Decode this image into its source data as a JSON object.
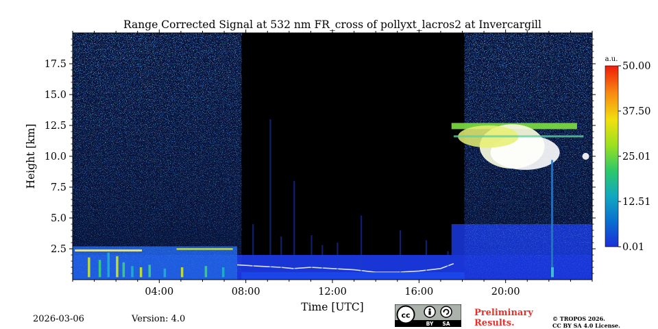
{
  "chart_data": {
    "type": "heatmap",
    "title": "Range Corrected Signal at 532 nm FR_cross of pollyxt_lacros2 at Invercargill",
    "xlabel": "Time [UTC]",
    "ylabel": "Height [km]",
    "xlim_hours": [
      0,
      24
    ],
    "ylim_km": [
      0,
      20
    ],
    "x_ticks": [
      {
        "value": 4,
        "label": "04:00"
      },
      {
        "value": 8,
        "label": "08:00"
      },
      {
        "value": 12,
        "label": "12:00"
      },
      {
        "value": 16,
        "label": "16:00"
      },
      {
        "value": 20,
        "label": "20:00"
      }
    ],
    "y_ticks": [
      {
        "value": 2.5,
        "label": "2.5"
      },
      {
        "value": 5.0,
        "label": "5.0"
      },
      {
        "value": 7.5,
        "label": "7.5"
      },
      {
        "value": 10.0,
        "label": "10.0"
      },
      {
        "value": 12.5,
        "label": "12.5"
      },
      {
        "value": 15.0,
        "label": "15.0"
      },
      {
        "value": 17.5,
        "label": "17.5"
      }
    ],
    "colorbar": {
      "unit": "a.u.",
      "range": [
        0.01,
        50.0
      ],
      "ticks": [
        {
          "value": 0.01,
          "label": "0.01"
        },
        {
          "value": 12.51,
          "label": "12.51"
        },
        {
          "value": 25.01,
          "label": "25.01"
        },
        {
          "value": 37.5,
          "label": "37.50"
        },
        {
          "value": 50.0,
          "label": "50.00"
        }
      ],
      "colors": [
        "#1a2fd8",
        "#0a6fd0",
        "#12a8c0",
        "#2cc86a",
        "#9ae020",
        "#f0e010",
        "#f88a10",
        "#ee1c0a"
      ]
    },
    "features": {
      "no_signal_period_hours": [
        7.8,
        18.1
      ],
      "cirrus_cloud": {
        "start_hour": 17.5,
        "end_hour": 24.0,
        "base_km": 9.3,
        "top_km": 12.7
      },
      "aerosol_layer": {
        "start_hour": 0.0,
        "end_hour": 7.6,
        "top_km": 2.7
      },
      "boundary_layer_top_km": 1.2
    }
  },
  "footer": {
    "date": "2026-03-06",
    "version": "Version: 4.0",
    "preliminary": [
      "Preliminary",
      "Results."
    ],
    "copyright": [
      "© TROPOS 2026.",
      "CC BY SA 4.0 License."
    ],
    "license_badge": {
      "cc": "cc",
      "by": "BY",
      "sa": "SA"
    }
  }
}
